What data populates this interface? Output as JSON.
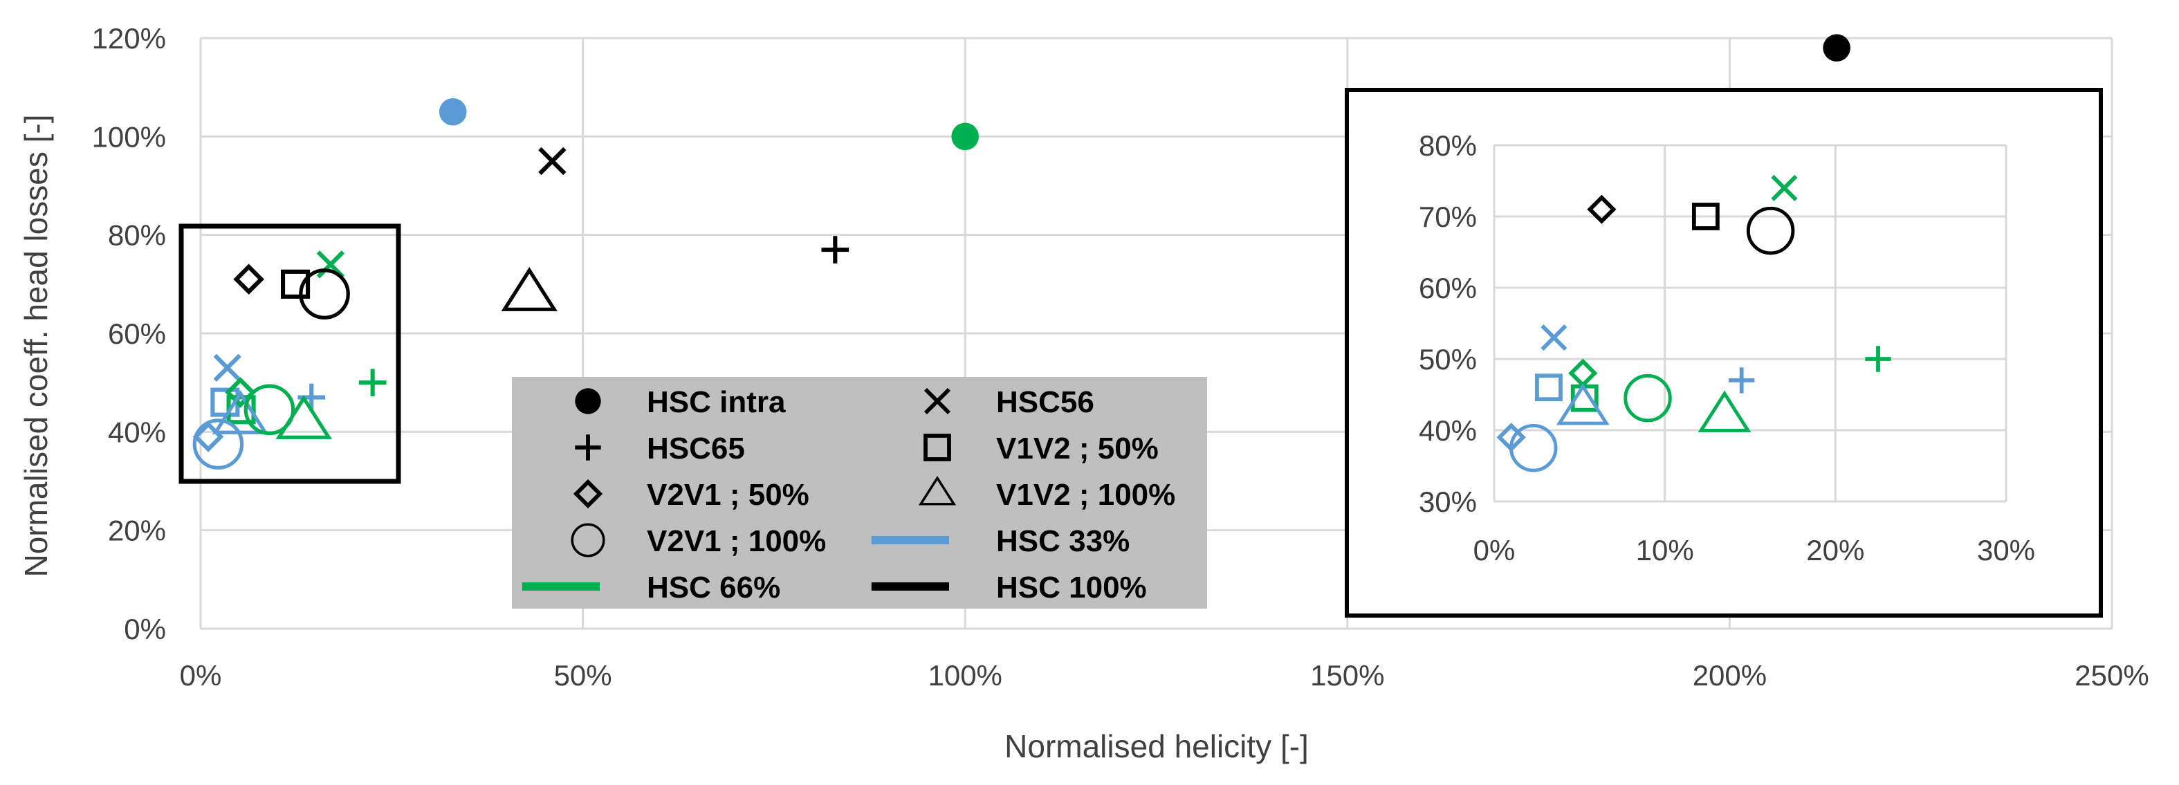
{
  "chart_data": {
    "type": "scatter",
    "xlabel": "Normalised helicity [-]",
    "ylabel": "Normalised coeff. head losses [-]",
    "x_ticks": [
      "0%",
      "50%",
      "100%",
      "150%",
      "200%",
      "250%"
    ],
    "y_ticks": [
      "0%",
      "20%",
      "40%",
      "60%",
      "80%",
      "100%",
      "120%"
    ],
    "xlim": [
      0,
      2.5
    ],
    "ylim": [
      0,
      1.2
    ],
    "grid": true,
    "colors": {
      "blue": "#5b9bd5",
      "green": "#00b050",
      "black": "#000000",
      "legend_bg": "#bfbfbf"
    },
    "series": [
      {
        "name": "HSC intra",
        "marker": "dot",
        "points": [
          {
            "x": 0.33,
            "y": 1.05,
            "color": "blue"
          },
          {
            "x": 1.0,
            "y": 1.0,
            "color": "green"
          },
          {
            "x": 2.14,
            "y": 1.18,
            "color": "black"
          }
        ]
      },
      {
        "name": "HSC56",
        "marker": "x",
        "points": [
          {
            "x": 0.035,
            "y": 0.53,
            "color": "blue"
          },
          {
            "x": 0.17,
            "y": 0.74,
            "color": "green"
          },
          {
            "x": 0.46,
            "y": 0.95,
            "color": "black"
          }
        ]
      },
      {
        "name": "HSC65",
        "marker": "plus",
        "points": [
          {
            "x": 0.145,
            "y": 0.47,
            "color": "blue"
          },
          {
            "x": 0.225,
            "y": 0.5,
            "color": "green"
          },
          {
            "x": 0.83,
            "y": 0.77,
            "color": "black"
          }
        ]
      },
      {
        "name": "V1V2 ; 50%",
        "marker": "square",
        "points": [
          {
            "x": 0.032,
            "y": 0.46,
            "color": "blue"
          },
          {
            "x": 0.053,
            "y": 0.445,
            "color": "green"
          },
          {
            "x": 0.124,
            "y": 0.7,
            "color": "black"
          }
        ]
      },
      {
        "name": "V2V1 ; 50%",
        "marker": "diamond",
        "points": [
          {
            "x": 0.01,
            "y": 0.39,
            "color": "blue"
          },
          {
            "x": 0.052,
            "y": 0.48,
            "color": "green"
          },
          {
            "x": 0.063,
            "y": 0.71,
            "color": "black"
          }
        ]
      },
      {
        "name": "V1V2 ; 100%",
        "marker": "triangle",
        "points": [
          {
            "x": 0.052,
            "y": 0.43,
            "color": "blue"
          },
          {
            "x": 0.135,
            "y": 0.42,
            "color": "green"
          },
          {
            "x": 0.43,
            "y": 0.68,
            "color": "black"
          }
        ]
      },
      {
        "name": "V2V1 ; 100%",
        "marker": "circle",
        "points": [
          {
            "x": 0.023,
            "y": 0.375,
            "color": "blue"
          },
          {
            "x": 0.09,
            "y": 0.445,
            "color": "green"
          },
          {
            "x": 0.162,
            "y": 0.68,
            "color": "black"
          }
        ]
      }
    ],
    "legend": {
      "placement": "bottom-center",
      "entries": [
        {
          "label": "HSC intra",
          "marker": "dot"
        },
        {
          "label": "HSC56",
          "marker": "x"
        },
        {
          "label": "HSC65",
          "marker": "plus"
        },
        {
          "label": "V1V2 ; 50%",
          "marker": "square"
        },
        {
          "label": "V2V1 ; 50%",
          "marker": "diamond"
        },
        {
          "label": "V1V2 ; 100%",
          "marker": "triangle"
        },
        {
          "label": "V2V1 ; 100%",
          "marker": "circle"
        },
        {
          "label": "HSC 33%",
          "marker": "line",
          "color": "blue"
        },
        {
          "label": "HSC 66%",
          "marker": "line",
          "color": "green"
        },
        {
          "label": "HSC 100%",
          "marker": "line",
          "color": "black"
        }
      ]
    },
    "inset": {
      "placement": "right",
      "xlim": [
        0,
        0.3
      ],
      "ylim": [
        0.3,
        0.8
      ],
      "x_ticks": [
        "0%",
        "10%",
        "20%",
        "30%"
      ],
      "y_ticks": [
        "30%",
        "40%",
        "50%",
        "60%",
        "70%",
        "80%"
      ]
    }
  }
}
